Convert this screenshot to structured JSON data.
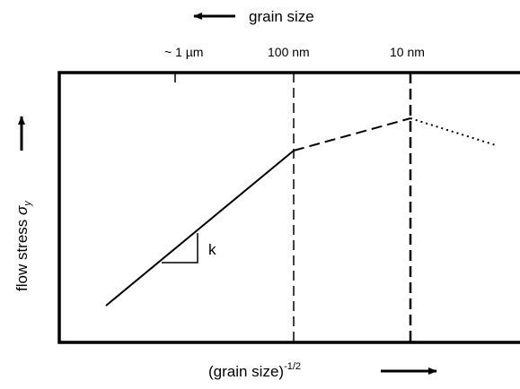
{
  "top_label": "grain size",
  "top_ticks": [
    "~ 1 µm",
    "100 nm",
    "10 nm"
  ],
  "slope_label": "k",
  "y_label": {
    "text": "flow stress ",
    "symbol": "σ",
    "subscript": "y"
  },
  "x_label": {
    "text": "(grain size)",
    "superscript": "-1/2"
  }
}
